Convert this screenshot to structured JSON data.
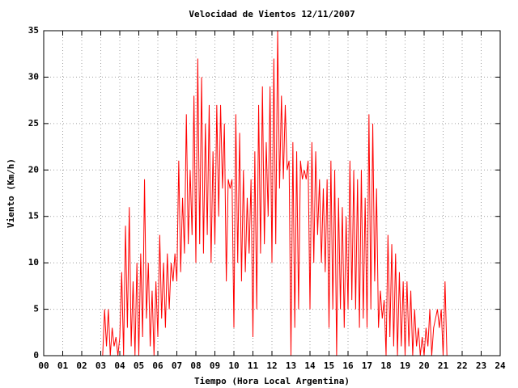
{
  "chart_data": {
    "type": "line",
    "title": "Velocidad de Vientos 12/11/2007",
    "xlabel": "Tiempo (Hora Local Argentina)",
    "ylabel": "Viento (Km/h)",
    "color": "#ff0000",
    "grid": true,
    "xlim": [
      0,
      24
    ],
    "ylim": [
      0,
      35
    ],
    "xticks": [
      {
        "value": 0,
        "label": "00"
      },
      {
        "value": 1,
        "label": "01"
      },
      {
        "value": 2,
        "label": "02"
      },
      {
        "value": 3,
        "label": "03"
      },
      {
        "value": 4,
        "label": "04"
      },
      {
        "value": 5,
        "label": "05"
      },
      {
        "value": 6,
        "label": "06"
      },
      {
        "value": 7,
        "label": "07"
      },
      {
        "value": 8,
        "label": "08"
      },
      {
        "value": 9,
        "label": "09"
      },
      10,
      11,
      12,
      13,
      14,
      15,
      16,
      17,
      18,
      19,
      20,
      21,
      22,
      23,
      24
    ],
    "yticks": [
      0,
      5,
      10,
      15,
      20,
      25,
      30,
      35
    ],
    "x": [
      3.1,
      3.2,
      3.3,
      3.4,
      3.5,
      3.6,
      3.7,
      3.8,
      3.9,
      4.0,
      4.1,
      4.2,
      4.3,
      4.4,
      4.5,
      4.6,
      4.7,
      4.8,
      4.9,
      5.0,
      5.1,
      5.2,
      5.3,
      5.4,
      5.5,
      5.6,
      5.7,
      5.8,
      5.9,
      6.0,
      6.1,
      6.2,
      6.3,
      6.4,
      6.5,
      6.6,
      6.7,
      6.8,
      6.9,
      7.0,
      7.1,
      7.2,
      7.3,
      7.4,
      7.5,
      7.6,
      7.7,
      7.8,
      7.9,
      8.0,
      8.1,
      8.2,
      8.3,
      8.4,
      8.5,
      8.6,
      8.7,
      8.8,
      8.9,
      9.0,
      9.1,
      9.2,
      9.3,
      9.4,
      9.5,
      9.6,
      9.7,
      9.8,
      9.9,
      10.0,
      10.1,
      10.2,
      10.3,
      10.4,
      10.5,
      10.6,
      10.7,
      10.8,
      10.9,
      11.0,
      11.1,
      11.2,
      11.3,
      11.4,
      11.5,
      11.6,
      11.7,
      11.8,
      11.9,
      12.0,
      12.1,
      12.2,
      12.3,
      12.4,
      12.5,
      12.6,
      12.7,
      12.8,
      12.9,
      13.0,
      13.1,
      13.2,
      13.3,
      13.4,
      13.5,
      13.6,
      13.7,
      13.8,
      13.9,
      14.0,
      14.1,
      14.2,
      14.3,
      14.4,
      14.5,
      14.6,
      14.7,
      14.8,
      14.9,
      15.0,
      15.1,
      15.2,
      15.3,
      15.4,
      15.5,
      15.6,
      15.7,
      15.8,
      15.9,
      16.0,
      16.1,
      16.2,
      16.3,
      16.4,
      16.5,
      16.6,
      16.7,
      16.8,
      16.9,
      17.0,
      17.1,
      17.2,
      17.3,
      17.4,
      17.5,
      17.6,
      17.7,
      17.8,
      17.9,
      18.0,
      18.1,
      18.2,
      18.3,
      18.4,
      18.5,
      18.6,
      18.7,
      18.8,
      18.9,
      19.0,
      19.1,
      19.2,
      19.3,
      19.4,
      19.5,
      19.6,
      19.7,
      19.8,
      19.9,
      20.0,
      20.1,
      20.2,
      20.3,
      20.4,
      20.5,
      20.6,
      20.7,
      20.8,
      20.9,
      21.0,
      21.1,
      21.2
    ],
    "values": [
      0,
      5,
      1,
      5,
      0,
      3,
      1,
      2,
      0,
      2,
      9,
      0,
      14,
      3,
      16,
      1,
      8,
      0,
      10,
      0,
      11,
      2,
      19,
      4,
      10,
      1,
      7,
      0,
      8,
      2,
      13,
      4,
      10,
      3,
      11,
      5,
      10,
      8,
      11,
      8,
      21,
      9,
      17,
      11,
      26,
      12,
      20,
      13,
      28,
      10,
      32,
      12,
      30,
      11,
      25,
      13,
      27,
      10,
      22,
      12,
      27,
      15,
      27,
      18,
      25,
      8,
      19,
      18,
      19,
      3,
      26,
      10,
      24,
      8,
      20,
      9,
      17,
      11,
      19,
      2,
      22,
      5,
      27,
      11,
      29,
      12,
      23,
      15,
      29,
      10,
      32,
      12,
      35,
      18,
      28,
      19,
      27,
      20,
      21,
      0,
      23,
      3,
      22,
      5,
      21,
      19,
      20,
      19,
      21,
      5,
      23,
      10,
      22,
      13,
      19,
      10,
      18,
      9,
      19,
      3,
      21,
      5,
      20,
      0,
      17,
      5,
      16,
      3,
      15,
      5,
      21,
      6,
      20,
      5,
      19,
      3,
      20,
      4,
      17,
      3,
      26,
      5,
      25,
      8,
      18,
      3,
      7,
      4,
      6,
      0,
      13,
      2,
      12,
      1,
      11,
      0,
      9,
      1,
      8,
      0,
      8,
      1,
      7,
      0,
      5,
      1,
      3,
      0,
      2,
      0,
      3,
      1,
      5,
      0,
      3,
      4,
      5,
      3,
      5,
      0,
      8,
      0
    ]
  }
}
